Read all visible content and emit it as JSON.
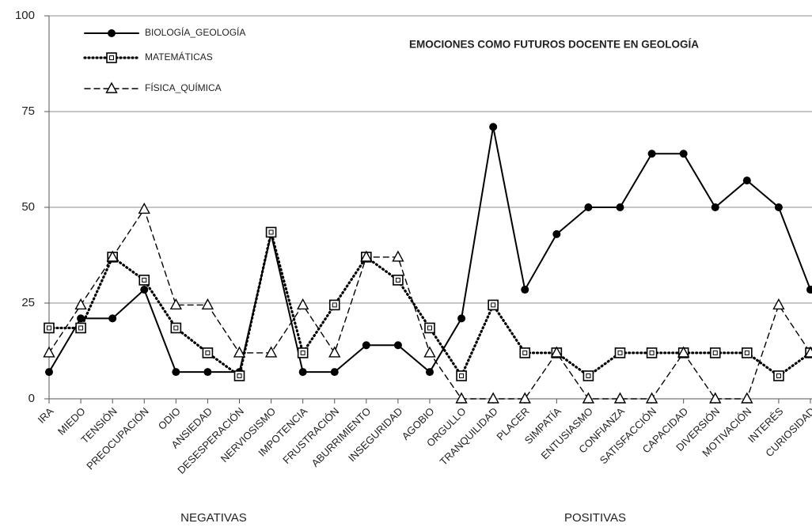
{
  "chart_data": {
    "type": "line",
    "title": "EMOCIONES COMO FUTUROS DOCENTE EN GEOLOGÍA",
    "categories": [
      "IRA",
      "MIEDO",
      "TENSIÓN",
      "PREOCUPACIÓN",
      "ODIO",
      "ANSIEDAD",
      "DESESPERACIÓN",
      "NERVIOSISMO",
      "IMPOTENCIA",
      "FRUSTRACIÓN",
      "ABURRIMIENTO",
      "INSEGURIDAD",
      "AGOBIO",
      "ORGULLO",
      "TRANQUILIDAD",
      "PLACER",
      "SIMPATÍA",
      "ENTUSIASMO",
      "CONFIANZA",
      "SATISFACCIÓN",
      "CAPACIDAD",
      "DIVERSIÓN",
      "MOTIVACIÓN",
      "INTERÉS",
      "CURIOSIDAD"
    ],
    "series": [
      {
        "name": "BIOLOGÍA_GEOLOGÍA",
        "color": "#000000",
        "marker": "circle",
        "dash": "solid",
        "values": [
          7,
          21,
          21,
          28.5,
          7,
          7,
          7,
          43,
          7,
          7,
          14,
          14,
          7,
          21,
          71,
          28.5,
          43,
          50,
          50,
          64,
          64,
          50,
          57,
          50,
          28.5
        ]
      },
      {
        "name": "MATEMÁTICAS",
        "color": "#000000",
        "marker": "square",
        "dash": "dotted",
        "values": [
          18.5,
          18.5,
          37,
          31,
          18.5,
          12,
          6,
          43.5,
          12,
          24.5,
          37,
          31,
          18.5,
          6,
          24.5,
          12,
          12,
          6,
          12,
          12,
          12,
          12,
          12,
          6,
          12
        ]
      },
      {
        "name": "FÍSICA_QUÍMICA",
        "color": "#000000",
        "marker": "triangle",
        "dash": "dashed",
        "values": [
          12,
          24.5,
          37,
          49.5,
          24.5,
          24.5,
          12,
          12,
          24.5,
          12,
          37,
          37,
          12,
          0,
          0,
          0,
          12,
          0,
          0,
          0,
          12,
          0,
          0,
          24.5,
          12
        ]
      }
    ],
    "annotations": [
      "NEGATIVAS",
      "POSITIVAS"
    ],
    "ylim": [
      0,
      100
    ],
    "yticks": [
      0,
      25,
      50,
      75,
      100
    ],
    "grid": true,
    "legend": "top-left"
  }
}
